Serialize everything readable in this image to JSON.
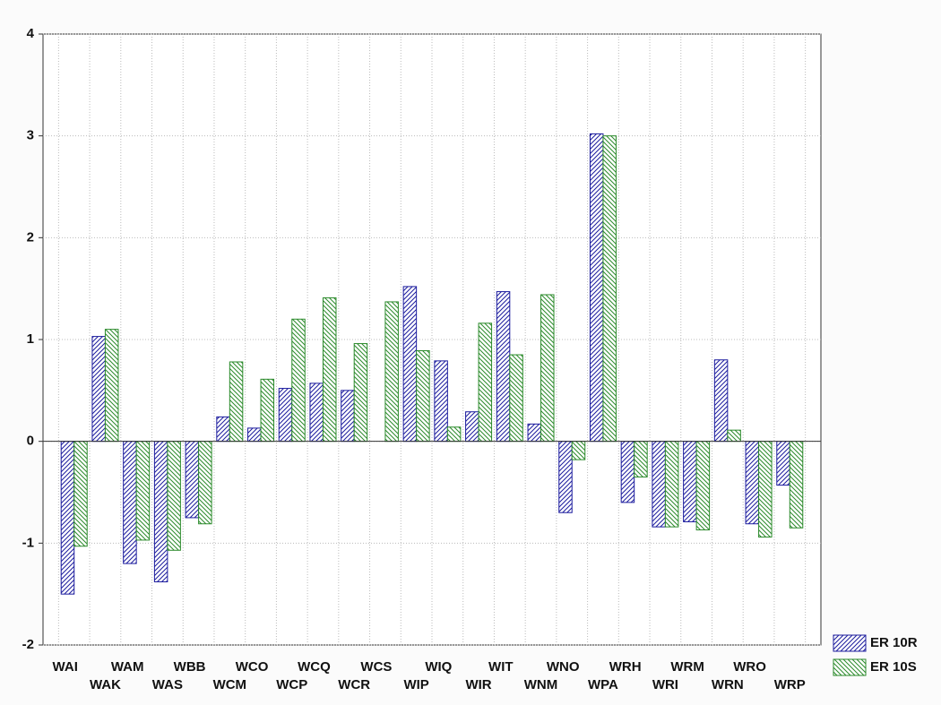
{
  "chart_data": {
    "type": "bar",
    "categories": [
      "WAI",
      "WAK",
      "WAM",
      "WAS",
      "WBB",
      "WCM",
      "WCO",
      "WCP",
      "WCQ",
      "WCR",
      "WCS",
      "WIP",
      "WIQ",
      "WIR",
      "WIT",
      "WNM",
      "WNO",
      "WPA",
      "WRH",
      "WRI",
      "WRM",
      "WRN",
      "WRO",
      "WRP"
    ],
    "series": [
      {
        "name": "ER 10R",
        "color": "#1c1c9e",
        "values": [
          -1.5,
          1.03,
          -1.2,
          -1.38,
          -0.75,
          0.24,
          0.13,
          0.52,
          0.57,
          0.5,
          0,
          1.52,
          0.79,
          0.29,
          1.47,
          0.17,
          -0.7,
          3.02,
          -0.6,
          -0.84,
          -0.79,
          0.8,
          -0.81,
          -0.43
        ]
      },
      {
        "name": "ER 10S",
        "color": "#2b8a2b",
        "values": [
          -1.03,
          1.1,
          -0.97,
          -1.07,
          -0.81,
          0.78,
          0.61,
          1.2,
          1.41,
          0.96,
          1.37,
          0.89,
          0.14,
          1.16,
          0.85,
          1.44,
          -0.18,
          3.0,
          -0.35,
          -0.84,
          -0.87,
          0.11,
          -0.94,
          -0.85
        ]
      }
    ],
    "ylim": [
      -2,
      4
    ],
    "yticks": [
      -2,
      -1,
      0,
      1,
      2,
      3,
      4
    ],
    "grid": true,
    "legend": "bottom-right"
  }
}
